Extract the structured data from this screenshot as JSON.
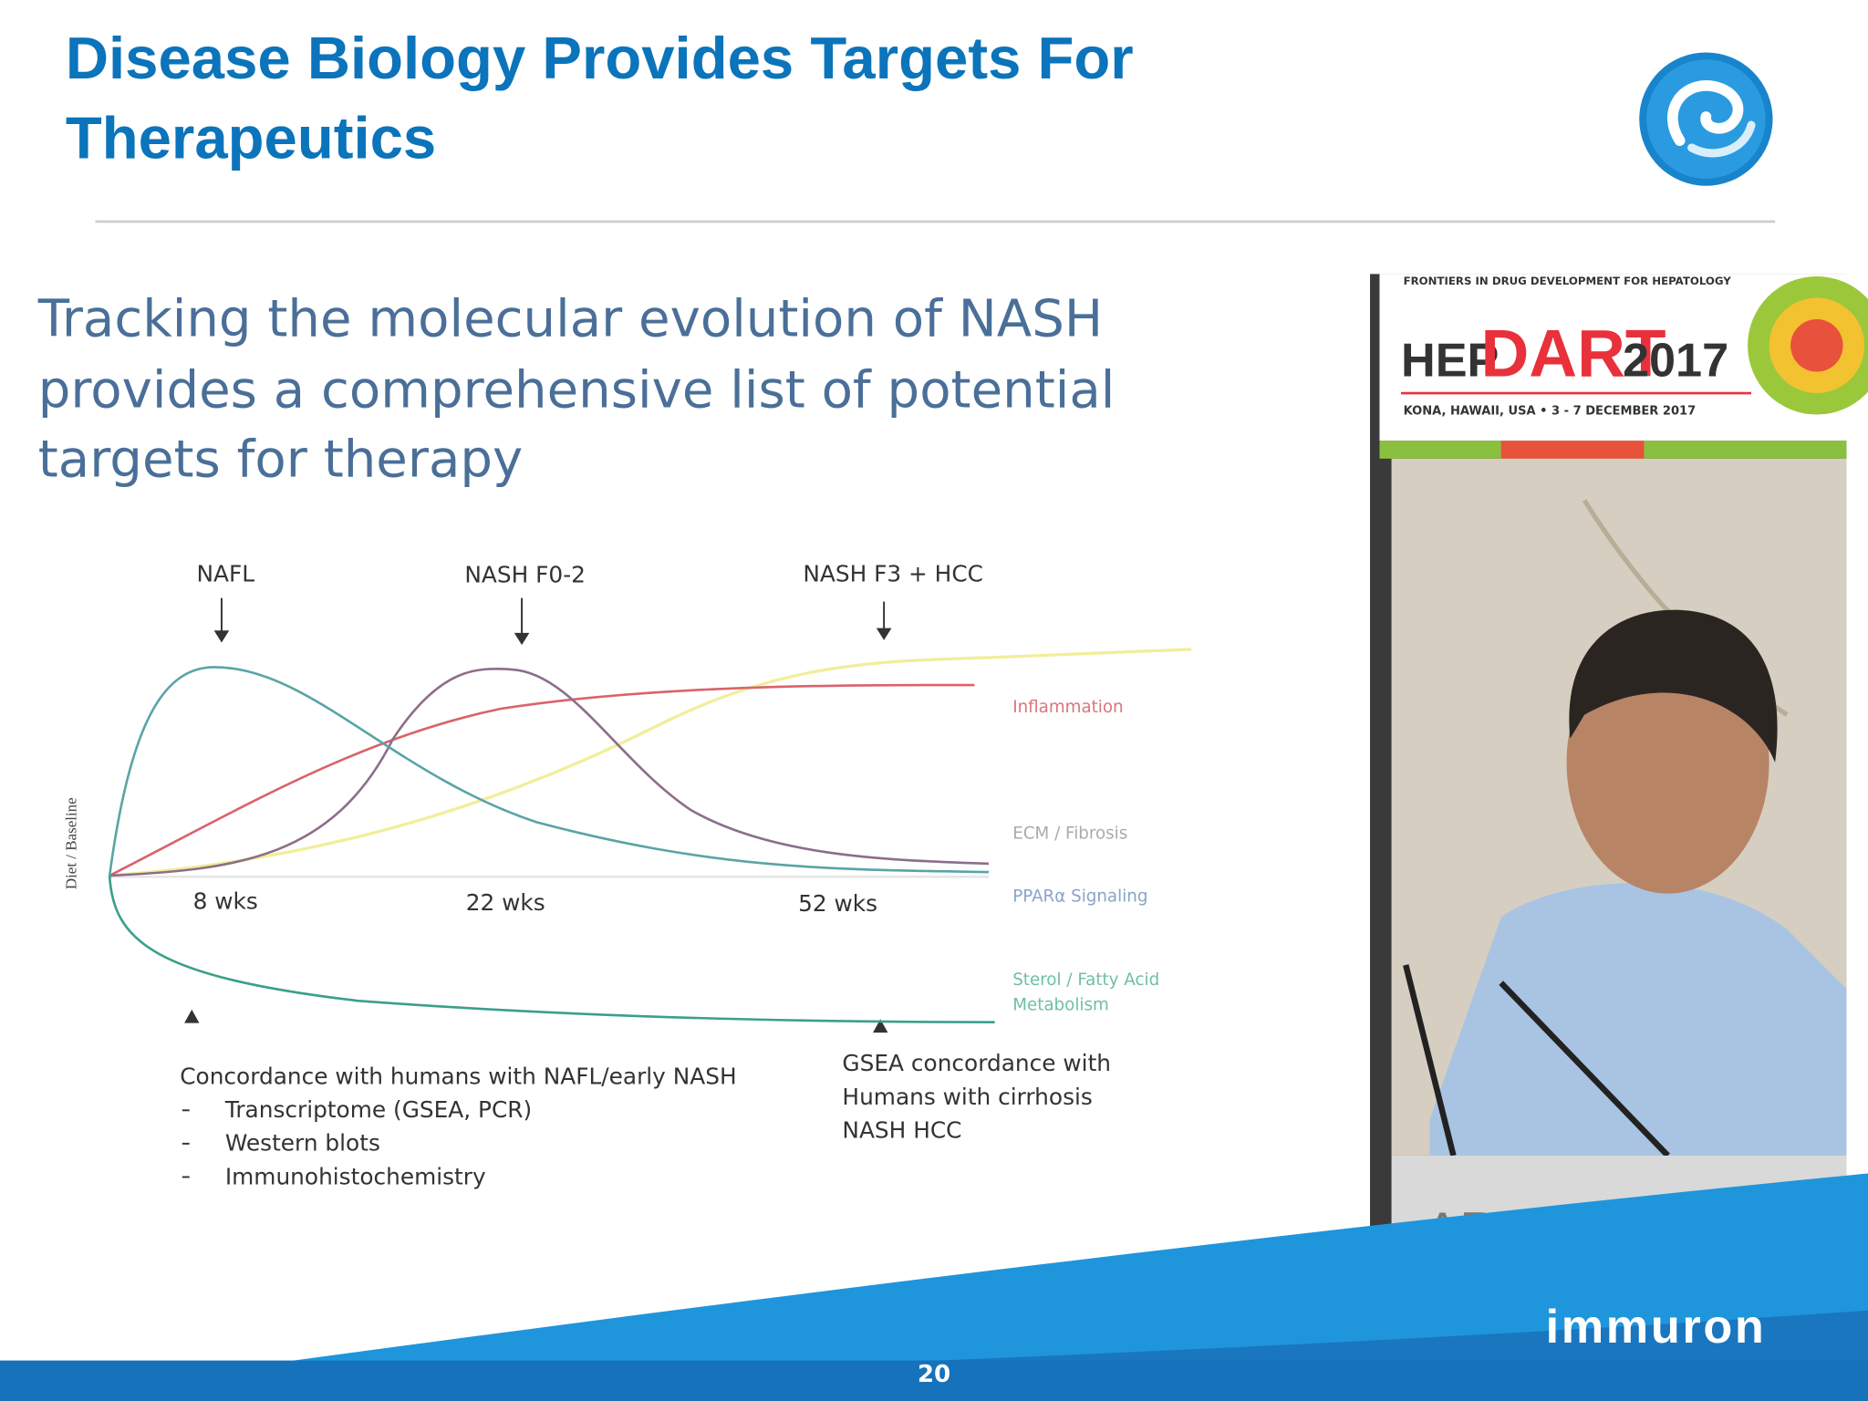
{
  "header": {
    "title": [
      "Disease Biology Provides Targets For",
      "Therapeutics"
    ]
  },
  "slide": {
    "heading": [
      "Tracking the molecular evolution of NASH",
      "provides a comprehensive list of potential",
      "targets for therapy"
    ],
    "diagram": {
      "y_label": "Diet / Baseline",
      "stages": [
        "NAFL",
        "NASH F0-2",
        "NASH F3 + HCC"
      ],
      "time_labels": [
        "8 wks",
        "22 wks",
        "52 wks"
      ],
      "curve_labels": [
        "Inflammation",
        "ECM / Fibrosis",
        "PPARα Signaling",
        "Sterol / Fatty Acid",
        "Metabolism"
      ]
    },
    "left_note": {
      "heading": "Concordance with humans with NAFL/early NASH",
      "items": [
        "Transcriptome (GSEA, PCR)",
        "Western blots",
        "Immunohistochemistry"
      ]
    },
    "right_note": [
      "GSEA concordance with",
      "Humans with cirrhosis",
      "NASH HCC"
    ]
  },
  "video": {
    "banner": "FRONTIERS IN DRUG DEVELOPMENT FOR HEPATOLOGY",
    "hep": "HEP",
    "dart": "DART",
    "year": "2017",
    "location": "KONA, HAWAII, USA • 3 - 7 DECEMBER 2017",
    "nameplate": "ARUN SANYAL"
  },
  "footer": {
    "logo": "immuron",
    "page": "20"
  }
}
